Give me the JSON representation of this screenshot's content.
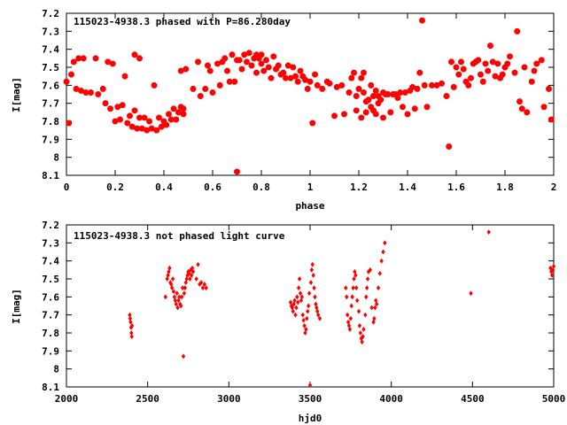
{
  "chart_data": [
    {
      "type": "scatter",
      "title": "115023-4938.3 phased with P=86.280day",
      "xlabel": "phase",
      "ylabel": "I[mag]",
      "xlim": [
        0,
        2
      ],
      "ylim": [
        8.1,
        7.2
      ],
      "y_inverted": true,
      "grid": false,
      "marker_color": "#ff0000",
      "marker": "star",
      "x_ticks": [
        0,
        0.2,
        0.4,
        0.6,
        0.8,
        1,
        1.2,
        1.4,
        1.6,
        1.8,
        2
      ],
      "x_tick_labels": [
        "0",
        "0.2",
        "0.4",
        "0.6",
        "0.8",
        "1",
        "1.2",
        "1.4",
        "1.6",
        "1.8",
        "2"
      ],
      "y_ticks": [
        7.2,
        7.3,
        7.4,
        7.5,
        7.6,
        7.7,
        7.8,
        7.9,
        8,
        8.1
      ],
      "y_tick_labels": [
        "7.2",
        "7.3",
        "7.4",
        "7.5",
        "7.6",
        "7.7",
        "7.8",
        "7.9",
        "8",
        "8.1"
      ],
      "points": [
        [
          0.0,
          7.58
        ],
        [
          0.01,
          7.81
        ],
        [
          0.02,
          7.54
        ],
        [
          0.03,
          7.47
        ],
        [
          0.04,
          7.62
        ],
        [
          0.05,
          7.45
        ],
        [
          0.06,
          7.63
        ],
        [
          0.07,
          7.45
        ],
        [
          0.08,
          7.64
        ],
        [
          0.1,
          7.64
        ],
        [
          0.12,
          7.45
        ],
        [
          0.13,
          7.65
        ],
        [
          0.15,
          7.62
        ],
        [
          0.16,
          7.7
        ],
        [
          0.17,
          7.47
        ],
        [
          0.18,
          7.73
        ],
        [
          0.19,
          7.48
        ],
        [
          0.2,
          7.8
        ],
        [
          0.21,
          7.72
        ],
        [
          0.22,
          7.79
        ],
        [
          0.23,
          7.71
        ],
        [
          0.24,
          7.55
        ],
        [
          0.25,
          7.81
        ],
        [
          0.26,
          7.77
        ],
        [
          0.27,
          7.83
        ],
        [
          0.28,
          7.74
        ],
        [
          0.28,
          7.43
        ],
        [
          0.29,
          7.84
        ],
        [
          0.3,
          7.45
        ],
        [
          0.3,
          7.78
        ],
        [
          0.31,
          7.84
        ],
        [
          0.32,
          7.78
        ],
        [
          0.33,
          7.85
        ],
        [
          0.34,
          7.8
        ],
        [
          0.35,
          7.84
        ],
        [
          0.36,
          7.6
        ],
        [
          0.37,
          7.85
        ],
        [
          0.38,
          7.78
        ],
        [
          0.39,
          7.83
        ],
        [
          0.4,
          7.8
        ],
        [
          0.41,
          7.82
        ],
        [
          0.42,
          7.76
        ],
        [
          0.43,
          7.79
        ],
        [
          0.44,
          7.73
        ],
        [
          0.45,
          7.79
        ],
        [
          0.46,
          7.75
        ],
        [
          0.47,
          7.72
        ],
        [
          0.47,
          7.52
        ],
        [
          0.48,
          7.76
        ],
        [
          0.48,
          7.73
        ],
        [
          0.49,
          7.51
        ],
        [
          0.52,
          7.62
        ],
        [
          0.54,
          7.47
        ],
        [
          0.55,
          7.66
        ],
        [
          0.57,
          7.62
        ],
        [
          0.58,
          7.49
        ],
        [
          0.59,
          7.52
        ],
        [
          0.6,
          7.64
        ],
        [
          0.62,
          7.48
        ],
        [
          0.63,
          7.6
        ],
        [
          0.64,
          7.47
        ],
        [
          0.65,
          7.45
        ],
        [
          0.66,
          7.52
        ],
        [
          0.67,
          7.58
        ],
        [
          0.68,
          7.43
        ],
        [
          0.69,
          7.58
        ],
        [
          0.7,
          8.08
        ],
        [
          0.7,
          7.46
        ],
        [
          0.71,
          7.46
        ],
        [
          0.72,
          7.51
        ],
        [
          0.73,
          7.43
        ],
        [
          0.74,
          7.47
        ],
        [
          0.75,
          7.42
        ],
        [
          0.76,
          7.49
        ],
        [
          0.77,
          7.45
        ],
        [
          0.78,
          7.43
        ],
        [
          0.78,
          7.53
        ],
        [
          0.79,
          7.45
        ],
        [
          0.8,
          7.48
        ],
        [
          0.8,
          7.43
        ],
        [
          0.81,
          7.52
        ],
        [
          0.82,
          7.46
        ],
        [
          0.83,
          7.5
        ],
        [
          0.84,
          7.56
        ],
        [
          0.85,
          7.44
        ],
        [
          0.86,
          7.51
        ],
        [
          0.87,
          7.49
        ],
        [
          0.88,
          7.54
        ],
        [
          0.89,
          7.53
        ],
        [
          0.9,
          7.56
        ],
        [
          0.91,
          7.49
        ],
        [
          0.92,
          7.56
        ],
        [
          0.93,
          7.5
        ],
        [
          0.94,
          7.55
        ],
        [
          0.95,
          7.58
        ],
        [
          0.96,
          7.52
        ],
        [
          0.97,
          7.55
        ],
        [
          0.98,
          7.57
        ],
        [
          0.99,
          7.62
        ],
        [
          1.0,
          7.58
        ],
        [
          1.01,
          7.81
        ],
        [
          1.02,
          7.54
        ],
        [
          1.03,
          7.6
        ],
        [
          1.05,
          7.62
        ],
        [
          1.07,
          7.58
        ],
        [
          1.08,
          7.59
        ],
        [
          1.1,
          7.77
        ],
        [
          1.11,
          7.61
        ],
        [
          1.13,
          7.6
        ],
        [
          1.14,
          7.76
        ],
        [
          1.16,
          7.64
        ],
        [
          1.17,
          7.56
        ],
        [
          1.18,
          7.53
        ],
        [
          1.19,
          7.66
        ],
        [
          1.19,
          7.74
        ],
        [
          1.2,
          7.62
        ],
        [
          1.21,
          7.78
        ],
        [
          1.21,
          7.56
        ],
        [
          1.22,
          7.64
        ],
        [
          1.22,
          7.53
        ],
        [
          1.23,
          7.69
        ],
        [
          1.23,
          7.75
        ],
        [
          1.24,
          7.68
        ],
        [
          1.25,
          7.6
        ],
        [
          1.25,
          7.72
        ],
        [
          1.26,
          7.66
        ],
        [
          1.26,
          7.74
        ],
        [
          1.27,
          7.63
        ],
        [
          1.27,
          7.76
        ],
        [
          1.28,
          7.7
        ],
        [
          1.28,
          7.66
        ],
        [
          1.29,
          7.68
        ],
        [
          1.3,
          7.64
        ],
        [
          1.3,
          7.78
        ],
        [
          1.31,
          7.65
        ],
        [
          1.32,
          7.65
        ],
        [
          1.33,
          7.75
        ],
        [
          1.34,
          7.65
        ],
        [
          1.35,
          7.65
        ],
        [
          1.36,
          7.67
        ],
        [
          1.37,
          7.64
        ],
        [
          1.38,
          7.72
        ],
        [
          1.39,
          7.64
        ],
        [
          1.4,
          7.76
        ],
        [
          1.41,
          7.63
        ],
        [
          1.42,
          7.61
        ],
        [
          1.43,
          7.73
        ],
        [
          1.44,
          7.62
        ],
        [
          1.45,
          7.53
        ],
        [
          1.46,
          7.24
        ],
        [
          1.47,
          7.6
        ],
        [
          1.48,
          7.72
        ],
        [
          1.5,
          7.6
        ],
        [
          1.52,
          7.6
        ],
        [
          1.54,
          7.59
        ],
        [
          1.56,
          7.66
        ],
        [
          1.57,
          7.94
        ],
        [
          1.58,
          7.47
        ],
        [
          1.59,
          7.61
        ],
        [
          1.6,
          7.5
        ],
        [
          1.61,
          7.54
        ],
        [
          1.62,
          7.47
        ],
        [
          1.63,
          7.51
        ],
        [
          1.64,
          7.58
        ],
        [
          1.65,
          7.6
        ],
        [
          1.66,
          7.56
        ],
        [
          1.67,
          7.48
        ],
        [
          1.68,
          7.47
        ],
        [
          1.69,
          7.46
        ],
        [
          1.7,
          7.54
        ],
        [
          1.71,
          7.58
        ],
        [
          1.72,
          7.48
        ],
        [
          1.73,
          7.52
        ],
        [
          1.74,
          7.38
        ],
        [
          1.75,
          7.47
        ],
        [
          1.76,
          7.55
        ],
        [
          1.77,
          7.48
        ],
        [
          1.78,
          7.56
        ],
        [
          1.79,
          7.54
        ],
        [
          1.8,
          7.5
        ],
        [
          1.81,
          7.48
        ],
        [
          1.82,
          7.44
        ],
        [
          1.84,
          7.53
        ],
        [
          1.85,
          7.3
        ],
        [
          1.86,
          7.69
        ],
        [
          1.87,
          7.73
        ],
        [
          1.88,
          7.5
        ],
        [
          1.89,
          7.75
        ],
        [
          1.91,
          7.58
        ],
        [
          1.92,
          7.52
        ],
        [
          1.93,
          7.48
        ],
        [
          1.95,
          7.46
        ],
        [
          1.96,
          7.72
        ],
        [
          1.98,
          7.62
        ],
        [
          1.99,
          7.79
        ]
      ]
    },
    {
      "type": "scatter",
      "title": "115023-4938.3 not phased light curve",
      "xlabel": "hjd0",
      "ylabel": "I[mag]",
      "xlim": [
        2000,
        5000
      ],
      "ylim": [
        8.1,
        7.2
      ],
      "y_inverted": true,
      "grid": false,
      "marker_color": "#ff0000",
      "marker": "diamond",
      "x_ticks": [
        2000,
        2500,
        3000,
        3500,
        4000,
        4500,
        5000
      ],
      "x_tick_labels": [
        "2000",
        "2500",
        "3000",
        "3500",
        "4000",
        "4500",
        "5000"
      ],
      "y_ticks": [
        7.2,
        7.3,
        7.4,
        7.5,
        7.6,
        7.7,
        7.8,
        7.9,
        8,
        8.1
      ],
      "y_tick_labels": [
        "7.2",
        "7.3",
        "7.4",
        "7.5",
        "7.6",
        "7.7",
        "7.8",
        "7.9",
        "8",
        "8.1"
      ],
      "points": [
        [
          2390,
          7.7
        ],
        [
          2392,
          7.72
        ],
        [
          2395,
          7.74
        ],
        [
          2398,
          7.77
        ],
        [
          2400,
          7.8
        ],
        [
          2402,
          7.82
        ],
        [
          2404,
          7.76
        ],
        [
          2610,
          7.6
        ],
        [
          2620,
          7.5
        ],
        [
          2625,
          7.48
        ],
        [
          2630,
          7.46
        ],
        [
          2635,
          7.44
        ],
        [
          2640,
          7.52
        ],
        [
          2645,
          7.53
        ],
        [
          2650,
          7.55
        ],
        [
          2655,
          7.5
        ],
        [
          2660,
          7.57
        ],
        [
          2665,
          7.6
        ],
        [
          2670,
          7.62
        ],
        [
          2675,
          7.64
        ],
        [
          2680,
          7.58
        ],
        [
          2685,
          7.66
        ],
        [
          2690,
          7.62
        ],
        [
          2695,
          7.6
        ],
        [
          2700,
          7.64
        ],
        [
          2705,
          7.65
        ],
        [
          2710,
          7.6
        ],
        [
          2715,
          7.55
        ],
        [
          2720,
          7.93
        ],
        [
          2725,
          7.58
        ],
        [
          2730,
          7.55
        ],
        [
          2735,
          7.52
        ],
        [
          2740,
          7.5
        ],
        [
          2745,
          7.48
        ],
        [
          2750,
          7.46
        ],
        [
          2755,
          7.47
        ],
        [
          2760,
          7.5
        ],
        [
          2765,
          7.45
        ],
        [
          2770,
          7.48
        ],
        [
          2775,
          7.44
        ],
        [
          2780,
          7.46
        ],
        [
          2800,
          7.5
        ],
        [
          2810,
          7.42
        ],
        [
          2820,
          7.53
        ],
        [
          2830,
          7.52
        ],
        [
          2840,
          7.55
        ],
        [
          2850,
          7.53
        ],
        [
          2860,
          7.55
        ],
        [
          3380,
          7.63
        ],
        [
          3385,
          7.65
        ],
        [
          3390,
          7.66
        ],
        [
          3395,
          7.68
        ],
        [
          3400,
          7.64
        ],
        [
          3405,
          7.62
        ],
        [
          3410,
          7.7
        ],
        [
          3415,
          7.66
        ],
        [
          3420,
          7.6
        ],
        [
          3425,
          7.63
        ],
        [
          3430,
          7.55
        ],
        [
          3435,
          7.5
        ],
        [
          3440,
          7.58
        ],
        [
          3445,
          7.62
        ],
        [
          3450,
          7.6
        ],
        [
          3455,
          7.7
        ],
        [
          3460,
          7.73
        ],
        [
          3465,
          7.76
        ],
        [
          3470,
          7.8
        ],
        [
          3475,
          7.78
        ],
        [
          3480,
          7.72
        ],
        [
          3485,
          7.68
        ],
        [
          3490,
          7.65
        ],
        [
          3495,
          7.58
        ],
        [
          3500,
          8.09
        ],
        [
          3505,
          7.52
        ],
        [
          3510,
          7.45
        ],
        [
          3515,
          7.42
        ],
        [
          3520,
          7.48
        ],
        [
          3525,
          7.55
        ],
        [
          3530,
          7.6
        ],
        [
          3535,
          7.64
        ],
        [
          3540,
          7.66
        ],
        [
          3545,
          7.68
        ],
        [
          3550,
          7.7
        ],
        [
          3560,
          7.72
        ],
        [
          3720,
          7.55
        ],
        [
          3725,
          7.6
        ],
        [
          3730,
          7.7
        ],
        [
          3735,
          7.74
        ],
        [
          3740,
          7.76
        ],
        [
          3745,
          7.78
        ],
        [
          3750,
          7.72
        ],
        [
          3755,
          7.65
        ],
        [
          3760,
          7.6
        ],
        [
          3765,
          7.55
        ],
        [
          3770,
          7.5
        ],
        [
          3775,
          7.46
        ],
        [
          3780,
          7.48
        ],
        [
          3785,
          7.55
        ],
        [
          3790,
          7.62
        ],
        [
          3800,
          7.68
        ],
        [
          3805,
          7.76
        ],
        [
          3810,
          7.8
        ],
        [
          3815,
          7.83
        ],
        [
          3820,
          7.85
        ],
        [
          3825,
          7.82
        ],
        [
          3830,
          7.78
        ],
        [
          3840,
          7.7
        ],
        [
          3845,
          7.6
        ],
        [
          3850,
          7.55
        ],
        [
          3855,
          7.5
        ],
        [
          3860,
          7.46
        ],
        [
          3870,
          7.45
        ],
        [
          3880,
          7.66
        ],
        [
          3890,
          7.74
        ],
        [
          3895,
          7.72
        ],
        [
          3900,
          7.66
        ],
        [
          3905,
          7.62
        ],
        [
          3910,
          7.64
        ],
        [
          3920,
          7.55
        ],
        [
          3930,
          7.47
        ],
        [
          3940,
          7.4
        ],
        [
          3950,
          7.35
        ],
        [
          3960,
          7.3
        ],
        [
          4490,
          7.58
        ],
        [
          4600,
          7.24
        ],
        [
          4980,
          7.44
        ],
        [
          4985,
          7.46
        ],
        [
          4990,
          7.48
        ],
        [
          4995,
          7.45
        ],
        [
          5000,
          7.43
        ]
      ]
    }
  ]
}
